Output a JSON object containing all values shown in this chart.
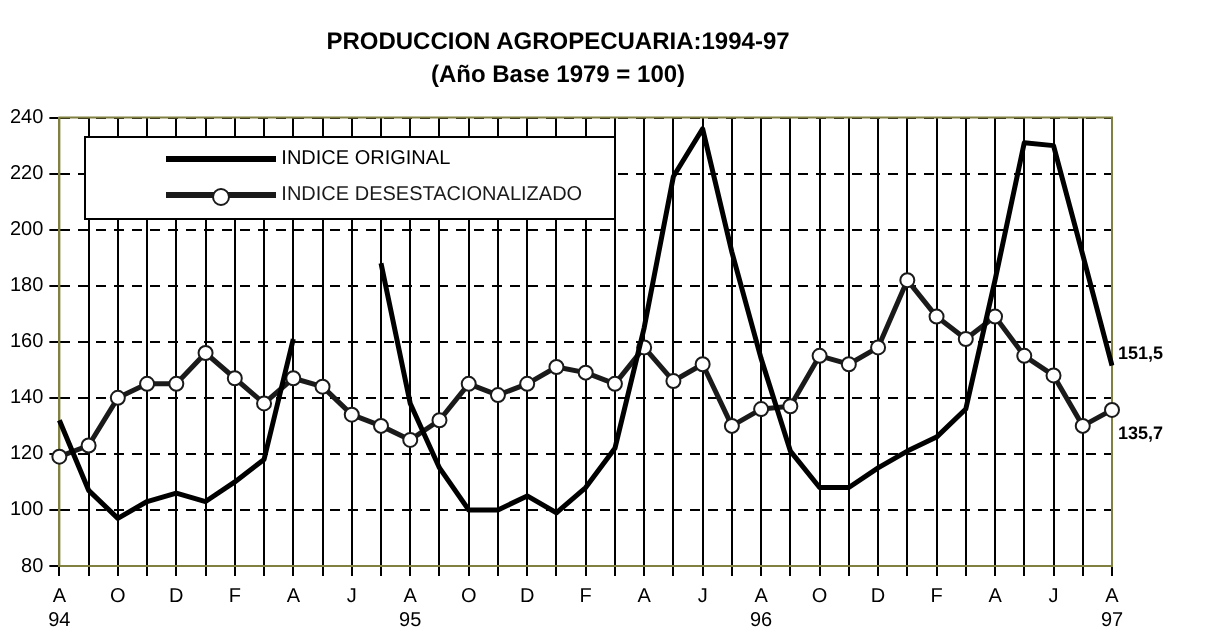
{
  "chart_data": {
    "type": "line",
    "title": "PRODUCCION AGROPECUARIA:1994-97",
    "subtitle": "(Año Base 1979 = 100)",
    "categories": [
      "A\n94",
      null,
      "O",
      null,
      "D",
      null,
      "F",
      null,
      "A",
      null,
      "J",
      null,
      "A\n95",
      null,
      "O",
      null,
      "D",
      null,
      "F",
      null,
      "A",
      null,
      "J",
      null,
      "A\n96",
      null,
      "O",
      null,
      "D",
      null,
      "F",
      null,
      "A",
      null,
      "J",
      null,
      "A\n97"
    ],
    "series": [
      {
        "name": "INDICE ORIGINAL",
        "color": "#000000",
        "marker": "none",
        "values": [
          132,
          107,
          97,
          103,
          106,
          103,
          110,
          118,
          161,
          null,
          null,
          188,
          138,
          115,
          100,
          100,
          105,
          99,
          108,
          122,
          165,
          219,
          236,
          192,
          154,
          121,
          108,
          108,
          115,
          121,
          126,
          136,
          182,
          231,
          230,
          191,
          151.5
        ],
        "value_labels": [
          null,
          null,
          null,
          null,
          null,
          null,
          null,
          null,
          null,
          null,
          null,
          null,
          null,
          null,
          null,
          null,
          null,
          null,
          null,
          null,
          null,
          null,
          null,
          null,
          null,
          null,
          null,
          null,
          null,
          null,
          null,
          null,
          null,
          null,
          null,
          null,
          "151,5"
        ]
      },
      {
        "name": "INDICE DESESTACIONALIZADO",
        "color": "#1a1a1a",
        "marker": "circle",
        "values": [
          119,
          123,
          140,
          145,
          145,
          156,
          147,
          138,
          147,
          144,
          134,
          130,
          125,
          132,
          145,
          141,
          145,
          151,
          149,
          145,
          158,
          146,
          152,
          130,
          136,
          137,
          155,
          152,
          158,
          182,
          169,
          161,
          169,
          155,
          148,
          130,
          135.7
        ],
        "value_labels": [
          null,
          null,
          null,
          null,
          null,
          null,
          null,
          null,
          null,
          null,
          null,
          null,
          null,
          null,
          null,
          null,
          null,
          null,
          null,
          null,
          null,
          null,
          null,
          null,
          null,
          null,
          null,
          null,
          null,
          null,
          null,
          null,
          null,
          null,
          null,
          null,
          "135,7"
        ]
      }
    ],
    "ylim": [
      80,
      240
    ],
    "yticks": [
      80,
      100,
      120,
      140,
      160,
      180,
      200,
      220,
      240
    ],
    "grid": true,
    "legend": "top left",
    "line_style": "solid"
  }
}
